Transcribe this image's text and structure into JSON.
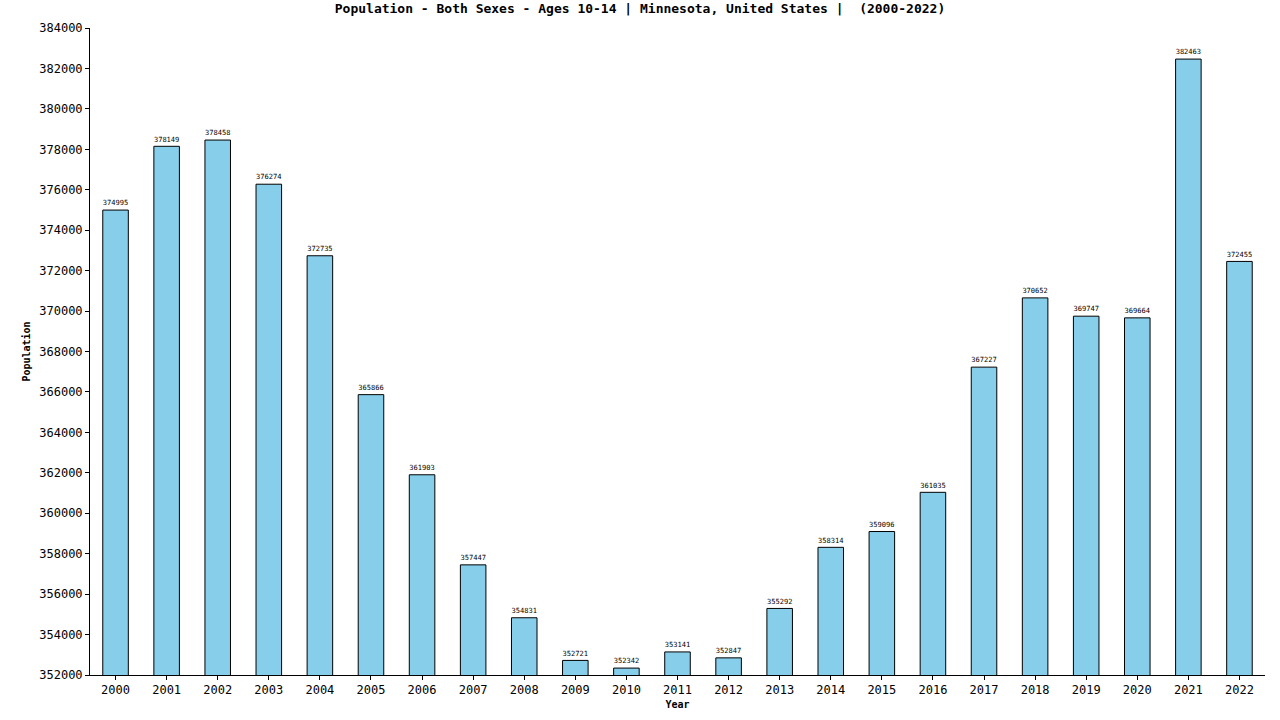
{
  "chart_data": {
    "type": "bar",
    "title": "Population - Both Sexes - Ages 10-14 | Minnesota, United States |  (2000-2022)",
    "x_label": "Year",
    "y_label": "Population",
    "categories": [
      "2000",
      "2001",
      "2002",
      "2003",
      "2004",
      "2005",
      "2006",
      "2007",
      "2008",
      "2009",
      "2010",
      "2011",
      "2012",
      "2013",
      "2014",
      "2015",
      "2016",
      "2017",
      "2018",
      "2019",
      "2020",
      "2021",
      "2022"
    ],
    "values": [
      374995,
      378149,
      378458,
      376274,
      372735,
      365866,
      361903,
      357447,
      354831,
      352721,
      352342,
      353141,
      352847,
      355292,
      358314,
      359096,
      361035,
      367227,
      370652,
      369747,
      369664,
      382463,
      372455
    ],
    "color": "#87ceeb",
    "ylim": [
      352000,
      384000
    ],
    "yticks": [
      352000,
      354000,
      356000,
      358000,
      360000,
      362000,
      364000,
      366000,
      368000,
      370000,
      372000,
      374000,
      376000,
      378000,
      380000,
      382000,
      384000
    ],
    "grid": false,
    "data_labels": true
  }
}
